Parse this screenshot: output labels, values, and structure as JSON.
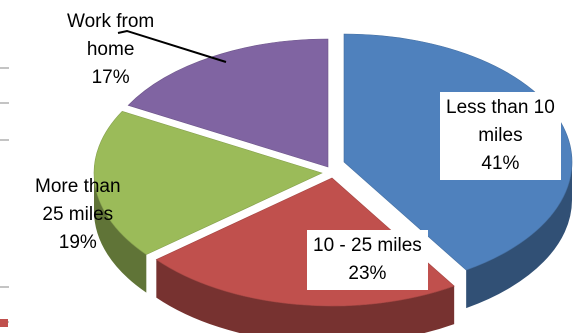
{
  "chart_data": {
    "type": "pie",
    "style": "3d-exploded",
    "title": "",
    "slices": [
      {
        "label": "Less than 10 miles",
        "label_lines": [
          "Less than 10",
          "miles"
        ],
        "value": 41,
        "value_label": "41%",
        "color": "#4f81bd"
      },
      {
        "label": "10 - 25 miles",
        "label_lines": [
          "10 - 25 miles"
        ],
        "value": 23,
        "value_label": "23%",
        "color": "#c0504d"
      },
      {
        "label": "More than 25 miles",
        "label_lines": [
          "More than",
          "25 miles"
        ],
        "value": 19,
        "value_label": "19%",
        "color": "#9bbb59"
      },
      {
        "label": "Work from home",
        "label_lines": [
          "Work from",
          "home"
        ],
        "value": 17,
        "value_label": "17%",
        "color": "#8064a2"
      }
    ]
  }
}
